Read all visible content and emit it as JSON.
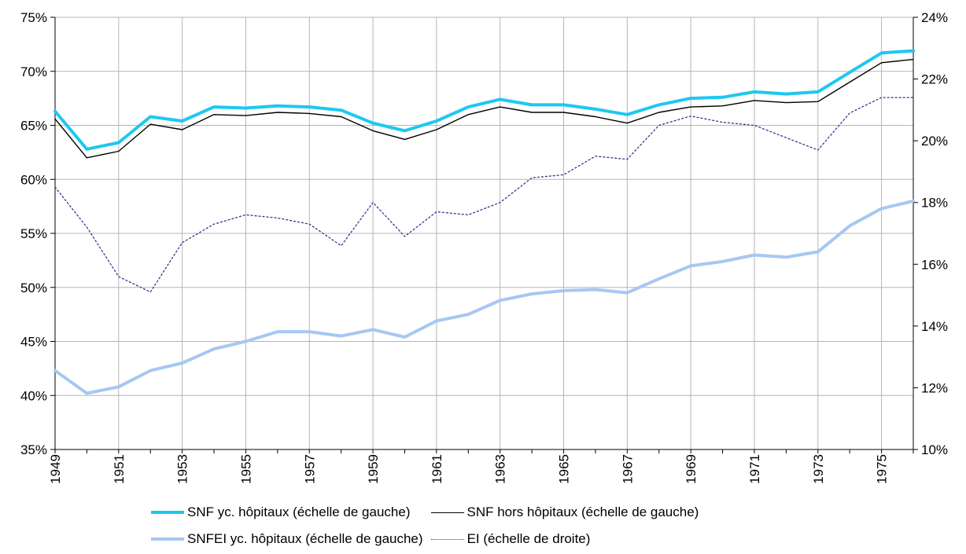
{
  "chart_data": {
    "type": "line",
    "title": "",
    "xlabel": "",
    "ylabel": "",
    "x": [
      1949,
      1950,
      1951,
      1952,
      1953,
      1954,
      1955,
      1956,
      1957,
      1958,
      1959,
      1960,
      1961,
      1962,
      1963,
      1964,
      1965,
      1966,
      1967,
      1968,
      1969,
      1970,
      1971,
      1972,
      1973,
      1974,
      1975,
      1976
    ],
    "x_tick_labels": [
      "1949",
      "1951",
      "1953",
      "1955",
      "1957",
      "1959",
      "1961",
      "1963",
      "1965",
      "1967",
      "1969",
      "1971",
      "1973",
      "1975"
    ],
    "ylim_left": [
      35,
      75
    ],
    "yticks_left": [
      "35%",
      "40%",
      "45%",
      "50%",
      "55%",
      "60%",
      "65%",
      "70%",
      "75%"
    ],
    "ylim_right": [
      10,
      24
    ],
    "yticks_right": [
      "10%",
      "12%",
      "14%",
      "16%",
      "18%",
      "20%",
      "22%",
      "24%"
    ],
    "grid": true,
    "legend_position": "bottom",
    "series": [
      {
        "name": "SNF yc. hôpitaux (échelle de gauche)",
        "axis": "left",
        "color": "#1ec8f0",
        "style": "solid-thick",
        "values": [
          66.3,
          62.8,
          63.4,
          65.8,
          65.4,
          66.7,
          66.6,
          66.8,
          66.7,
          66.4,
          65.2,
          64.5,
          65.4,
          66.7,
          67.4,
          66.9,
          66.9,
          66.5,
          66.0,
          66.9,
          67.5,
          67.6,
          68.1,
          67.9,
          68.1,
          69.9,
          71.7,
          71.9
        ]
      },
      {
        "name": "SNF hors hôpitaux (échelle de gauche)",
        "axis": "left",
        "color": "#000000",
        "style": "solid-thin",
        "values": [
          65.6,
          62.0,
          62.6,
          65.1,
          64.6,
          66.0,
          65.9,
          66.2,
          66.1,
          65.8,
          64.5,
          63.7,
          64.6,
          66.0,
          66.7,
          66.2,
          66.2,
          65.8,
          65.2,
          66.2,
          66.7,
          66.8,
          67.3,
          67.1,
          67.2,
          69.0,
          70.8,
          71.1
        ]
      },
      {
        "name": "SNFEI yc. hôpitaux (échelle de gauche)",
        "axis": "left",
        "color": "#a6c8f2",
        "style": "solid-thick",
        "values": [
          42.3,
          40.2,
          40.8,
          42.3,
          43.0,
          44.3,
          45.0,
          45.9,
          45.9,
          45.5,
          46.1,
          45.4,
          46.9,
          47.5,
          48.8,
          49.4,
          49.7,
          49.8,
          49.5,
          50.8,
          52.0,
          52.4,
          53.0,
          52.8,
          53.3,
          55.7,
          57.3,
          58.0
        ]
      },
      {
        "name": "EI (échelle de droite)",
        "axis": "right",
        "color": "#2e3a8c",
        "style": "dotted",
        "values": [
          18.5,
          17.2,
          15.6,
          15.1,
          16.7,
          17.3,
          17.6,
          17.5,
          17.3,
          16.6,
          18.0,
          16.9,
          17.7,
          17.6,
          18.0,
          18.8,
          18.9,
          19.5,
          19.4,
          20.5,
          20.8,
          20.6,
          20.5,
          20.1,
          19.7,
          20.9,
          21.4,
          21.4
        ]
      }
    ]
  }
}
